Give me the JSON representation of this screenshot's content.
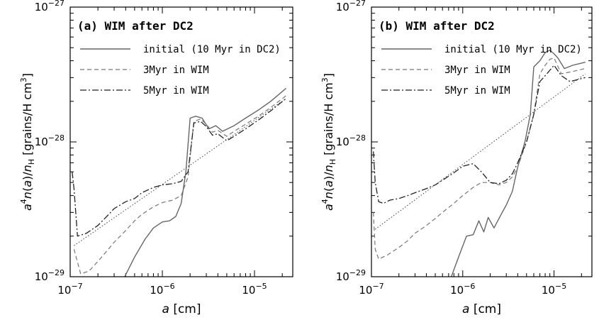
{
  "chart_data": [
    {
      "type": "line",
      "title": "(a) WIM after DC2",
      "xlabel": "a [cm]",
      "ylabel": "a^4 n(a)/n_H [grains/H cm^3]",
      "xscale": "log",
      "yscale": "log",
      "xlim": [
        1e-07,
        2.6e-05
      ],
      "ylim": [
        1e-29,
        1e-27
      ],
      "xticks": [
        {
          "value": 1e-07,
          "base": "10",
          "exp": "−7"
        },
        {
          "value": 1e-06,
          "base": "10",
          "exp": "−6"
        },
        {
          "value": 1e-05,
          "base": "10",
          "exp": "−5"
        }
      ],
      "yticks": [
        {
          "value": 1e-29,
          "base": "10",
          "exp": "−29"
        },
        {
          "value": 1e-28,
          "base": "10",
          "exp": "−28"
        },
        {
          "value": 1e-27,
          "base": "10",
          "exp": "−27"
        }
      ],
      "legend_position": "top-left",
      "series": [
        {
          "name": "initial (10 Myr in DC2)",
          "style": "solid",
          "color": "#666666",
          "x": [
            3.9e-07,
            5e-07,
            6.5e-07,
            8e-07,
            1e-06,
            1.2e-06,
            1.4e-06,
            1.6e-06,
            1.8e-06,
            2e-06,
            2.3e-06,
            2.7e-06,
            3.2e-06,
            3.8e-06,
            4.5e-06,
            6e-06,
            8e-06,
            1.1e-05,
            1.5e-05,
            2.2e-05
          ],
          "y": [
            1e-29,
            1.4e-29,
            1.9e-29,
            2.3e-29,
            2.55e-29,
            2.6e-29,
            2.8e-29,
            3.5e-29,
            6e-29,
            1.5e-28,
            1.55e-28,
            1.5e-28,
            1.25e-28,
            1.32e-28,
            1.2e-28,
            1.32e-28,
            1.5e-28,
            1.72e-28,
            2e-28,
            2.5e-28
          ]
        },
        {
          "name": "3Myr in WIM",
          "style": "dashed",
          "color": "#777777",
          "x": [
            1.1e-07,
            1.3e-07,
            1.6e-07,
            2e-07,
            2.5e-07,
            3e-07,
            4e-07,
            5e-07,
            6e-07,
            8e-07,
            1e-06,
            1.3e-06,
            1.6e-06,
            1.9e-06,
            2.2e-06,
            2.6e-06,
            3e-06,
            3.5e-06,
            4e-06,
            5e-06,
            6e-06,
            8e-06,
            1.1e-05,
            1.5e-05,
            2.2e-05
          ],
          "y": [
            1.6e-29,
            1.05e-29,
            1.1e-29,
            1.3e-29,
            1.55e-29,
            1.8e-29,
            2.2e-29,
            2.6e-29,
            2.9e-29,
            3.3e-29,
            3.55e-29,
            3.7e-29,
            4e-29,
            5.5e-29,
            1.42e-28,
            1.48e-28,
            1.35e-28,
            1.18e-28,
            1.22e-28,
            1.1e-28,
            1.2e-28,
            1.35e-28,
            1.55e-28,
            1.8e-28,
            2.2e-28
          ]
        },
        {
          "name": "5Myr in WIM",
          "style": "dashdot",
          "color": "#222222",
          "x": [
            1.05e-07,
            1.1e-07,
            1.2e-07,
            1.5e-07,
            2e-07,
            2.5e-07,
            3e-07,
            4e-07,
            5e-07,
            6e-07,
            8e-07,
            1e-06,
            1.3e-06,
            1.6e-06,
            1.9e-06,
            2.2e-06,
            2.6e-06,
            3e-06,
            3.5e-06,
            4e-06,
            5e-06,
            6e-06,
            8e-06,
            1.1e-05,
            1.5e-05,
            2.2e-05
          ],
          "y": [
            6e-29,
            4.5e-29,
            2e-29,
            2.1e-29,
            2.4e-29,
            2.8e-29,
            3.2e-29,
            3.6e-29,
            3.8e-29,
            4.2e-29,
            4.6e-29,
            4.8e-29,
            4.9e-29,
            5.1e-29,
            6e-29,
            1.38e-28,
            1.42e-28,
            1.3e-28,
            1.12e-28,
            1.15e-28,
            1.02e-28,
            1.1e-28,
            1.25e-28,
            1.45e-28,
            1.7e-28,
            2.1e-28
          ]
        },
        {
          "name": "",
          "style": "dotted",
          "color": "#444444",
          "x": [
            1.1e-07,
            2.2e-05
          ],
          "y": [
            1.7e-29,
            2.1e-28
          ]
        }
      ]
    },
    {
      "type": "line",
      "title": "(b) WIM after DC2",
      "xlabel": "a [cm]",
      "ylabel": "a^4 n(a)/n_H [grains/H cm^3]",
      "xscale": "log",
      "yscale": "log",
      "xlim": [
        1e-07,
        2.6e-05
      ],
      "ylim": [
        1e-29,
        1e-27
      ],
      "xticks": [
        {
          "value": 1e-07,
          "base": "10",
          "exp": "−7"
        },
        {
          "value": 1e-06,
          "base": "10",
          "exp": "−6"
        },
        {
          "value": 1e-05,
          "base": "10",
          "exp": "−5"
        }
      ],
      "yticks": [
        {
          "value": 1e-29,
          "base": "10",
          "exp": "−29"
        },
        {
          "value": 1e-28,
          "base": "10",
          "exp": "−28"
        },
        {
          "value": 1e-27,
          "base": "10",
          "exp": "−27"
        }
      ],
      "legend_position": "top-left",
      "series": [
        {
          "name": "initial (10 Myr in DC2)",
          "style": "solid",
          "color": "#666666",
          "x": [
            7.5e-07,
            9e-07,
            1.1e-06,
            1.3e-06,
            1.5e-06,
            1.7e-06,
            1.9e-06,
            2.2e-06,
            2.6e-06,
            3e-06,
            3.5e-06,
            4e-06,
            4.8e-06,
            5.5e-06,
            6e-06,
            7e-06,
            8e-06,
            9e-06,
            1e-05,
            1.1e-05,
            1.3e-05,
            1.6e-05,
            2.2e-05
          ],
          "y": [
            1e-29,
            1.4e-29,
            2e-29,
            2.05e-29,
            2.6e-29,
            2.15e-29,
            2.75e-29,
            2.3e-29,
            2.85e-29,
            3.4e-29,
            4.3e-29,
            6.5e-29,
            1e-28,
            1.6e-28,
            3.6e-28,
            4e-28,
            4.6e-28,
            4.8e-28,
            4.5e-28,
            4.2e-28,
            3.5e-28,
            3.7e-28,
            3.9e-28
          ]
        },
        {
          "name": "3Myr in WIM",
          "style": "dashed",
          "color": "#777777",
          "x": [
            1.05e-07,
            1.1e-07,
            1.2e-07,
            1.5e-07,
            2e-07,
            2.5e-07,
            3e-07,
            4e-07,
            5e-07,
            6e-07,
            8e-07,
            1e-06,
            1.3e-06,
            1.6e-06,
            2e-06,
            2.5e-06,
            3e-06,
            3.5e-06,
            4e-06,
            5e-06,
            6e-06,
            7e-06,
            8e-06,
            9e-06,
            1e-05,
            1.2e-05,
            1.5e-05,
            2.2e-05
          ],
          "y": [
            3e-29,
            1.6e-29,
            1.35e-29,
            1.45e-29,
            1.65e-29,
            1.85e-29,
            2.1e-29,
            2.4e-29,
            2.7e-29,
            3e-29,
            3.5e-29,
            4e-29,
            4.6e-29,
            5e-29,
            5e-29,
            4.8e-29,
            5e-29,
            5.5e-29,
            6.5e-29,
            1e-28,
            1.6e-28,
            3.2e-28,
            3.7e-28,
            4.1e-28,
            4.2e-28,
            3.2e-28,
            3.3e-28,
            3.5e-28
          ]
        },
        {
          "name": "5Myr in WIM",
          "style": "dashdot",
          "color": "#222222",
          "x": [
            1.05e-07,
            1.1e-07,
            1.2e-07,
            1.35e-07,
            1.6e-07,
            2e-07,
            2.5e-07,
            3e-07,
            4e-07,
            5e-07,
            6e-07,
            8e-07,
            1e-06,
            1.3e-06,
            1.6e-06,
            2e-06,
            2.5e-06,
            3e-06,
            3.5e-06,
            4e-06,
            5e-06,
            6e-06,
            7e-06,
            8e-06,
            9e-06,
            1e-05,
            1.2e-05,
            1.5e-05,
            2.2e-05
          ],
          "y": [
            8.5e-29,
            5e-29,
            3.6e-29,
            3.5e-29,
            3.7e-29,
            3.8e-29,
            4e-29,
            4.2e-29,
            4.5e-29,
            4.8e-29,
            5.2e-29,
            5.9e-29,
            6.6e-29,
            6.9e-29,
            6e-29,
            5e-29,
            4.9e-29,
            5.2e-29,
            5.8e-29,
            7e-29,
            1e-28,
            1.6e-28,
            2.8e-28,
            3.1e-28,
            3.4e-28,
            3.7e-28,
            3.1e-28,
            2.8e-28,
            3e-28
          ]
        },
        {
          "name": "",
          "style": "dotted",
          "color": "#444444",
          "x": [
            1.1e-07,
            2.2e-05
          ],
          "y": [
            2.25e-29,
            3.2e-28
          ]
        }
      ]
    }
  ]
}
